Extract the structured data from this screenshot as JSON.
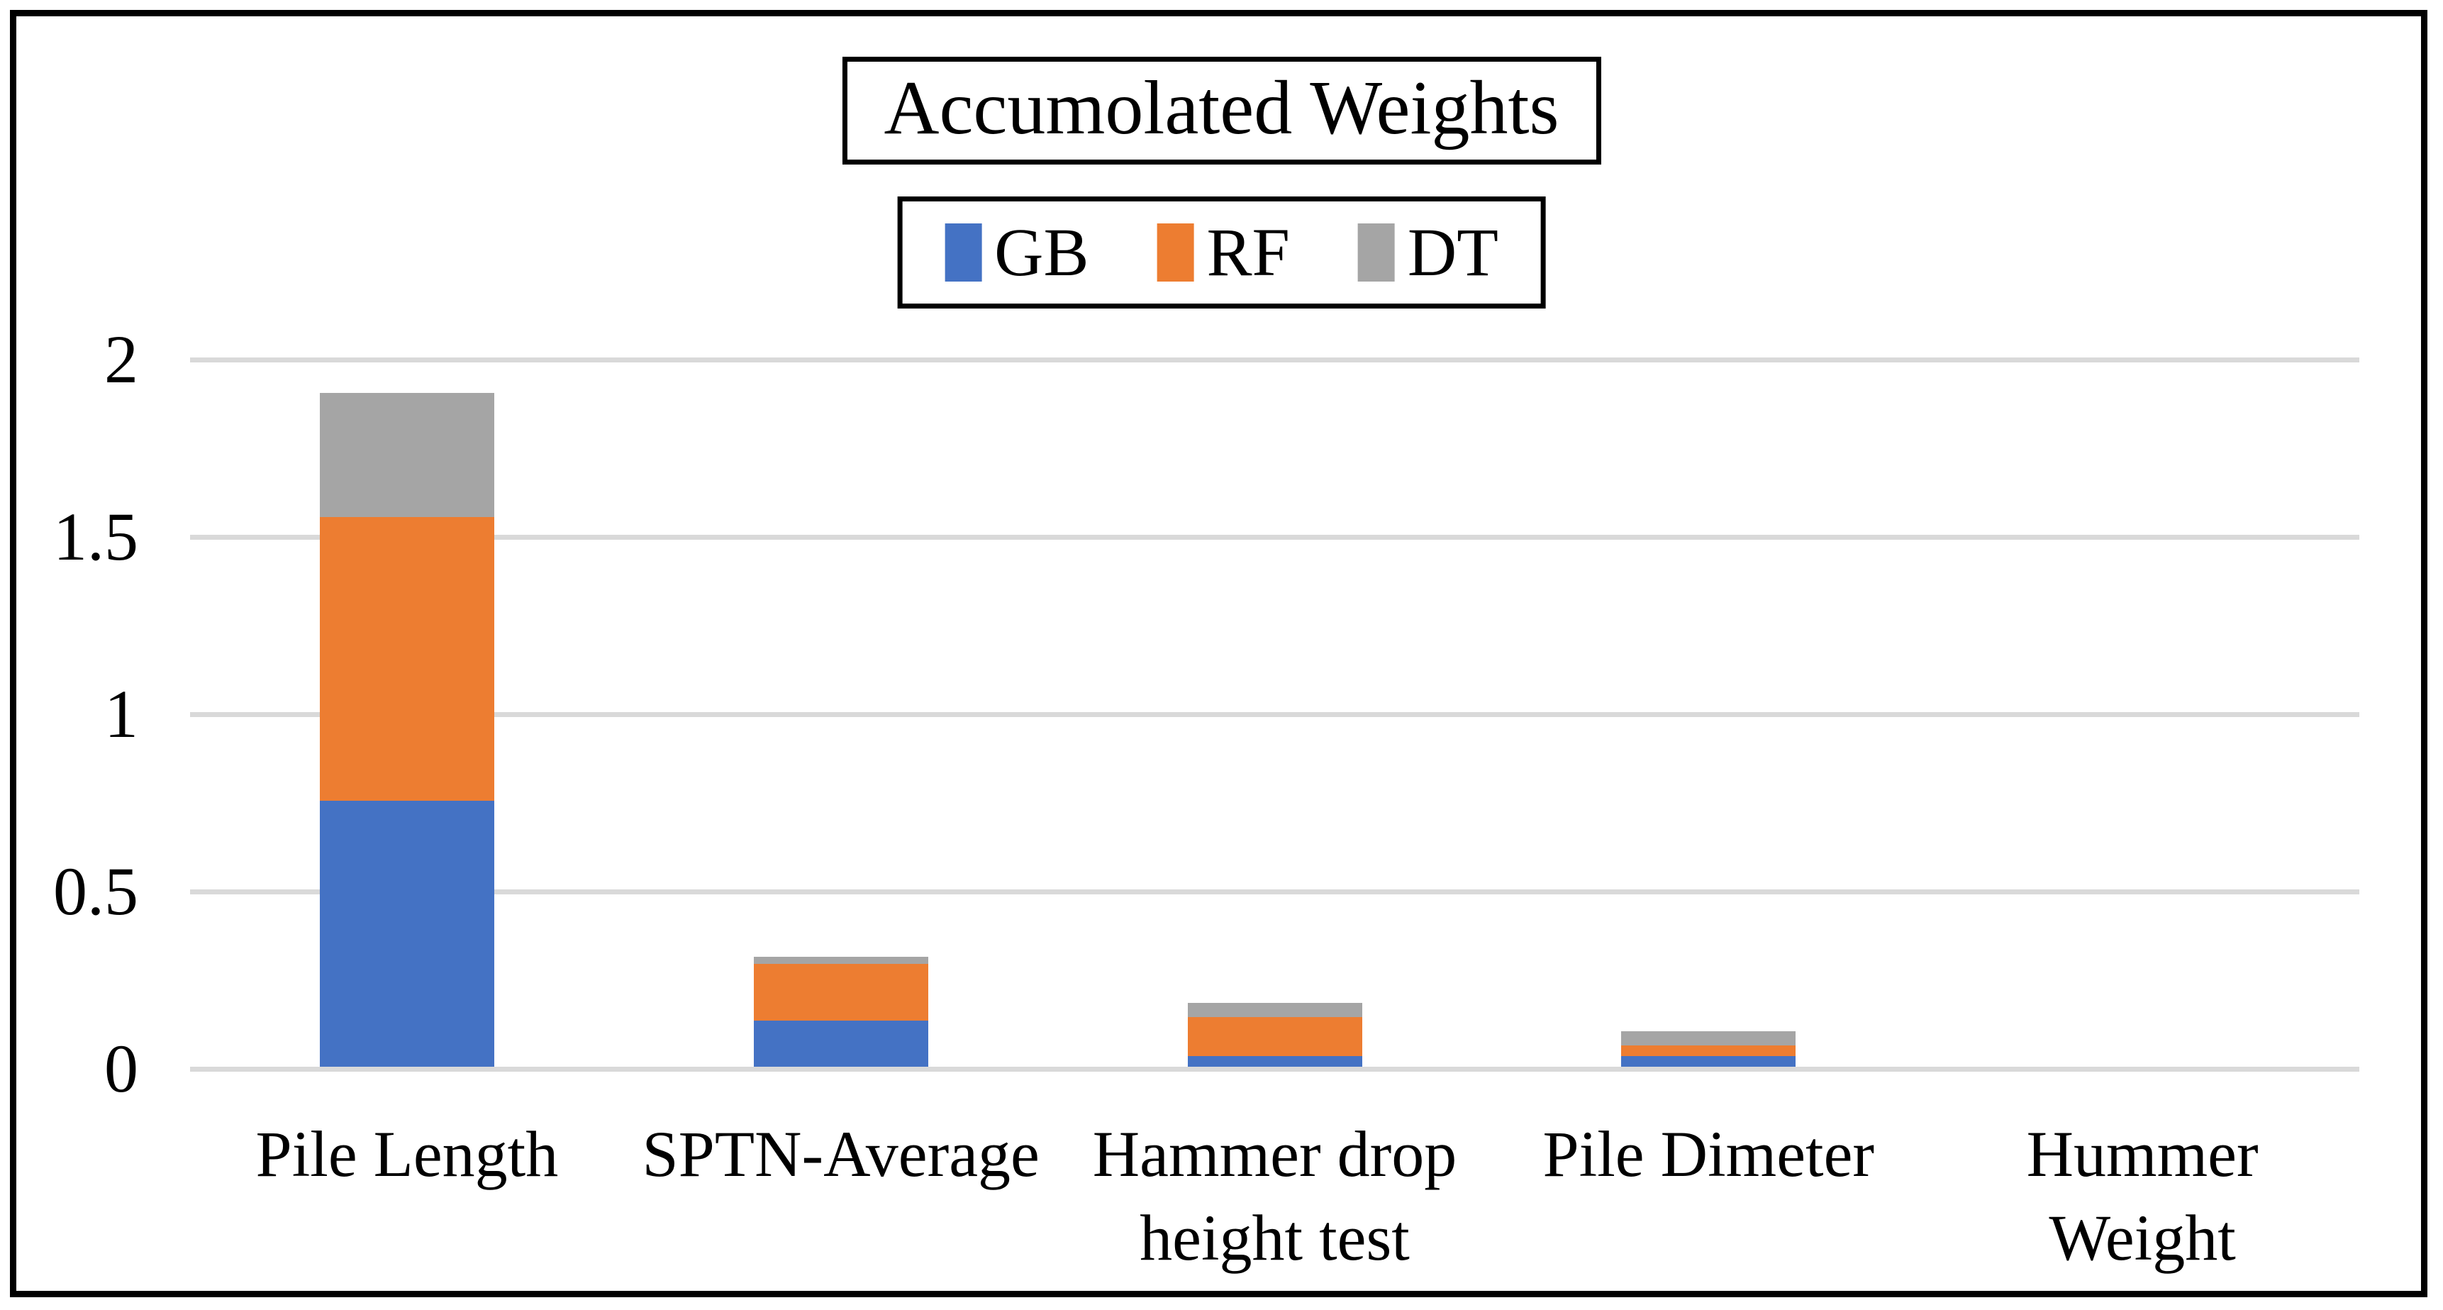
{
  "chart_data": {
    "type": "bar",
    "stacked": true,
    "title": "Accumolated Weights",
    "categories": [
      "Pile Length",
      "SPTN-Average",
      "Hammer drop\nheight test",
      "Pile Dimeter",
      "Hummer\nWeight"
    ],
    "series": [
      {
        "name": "GB",
        "color": "#4472C4",
        "values": [
          0.75,
          0.13,
          0.03,
          0.03,
          0
        ]
      },
      {
        "name": "RF",
        "color": "#ED7D31",
        "values": [
          0.8,
          0.16,
          0.11,
          0.03,
          0
        ]
      },
      {
        "name": "DT",
        "color": "#A5A5A5",
        "values": [
          0.35,
          0.02,
          0.04,
          0.04,
          0
        ]
      }
    ],
    "totals": [
      1.9,
      0.31,
      0.18,
      0.1,
      0
    ],
    "ylim": [
      0,
      2
    ],
    "yticks": [
      0,
      0.5,
      1,
      1.5,
      2
    ],
    "ytick_labels": [
      "0",
      "0.5",
      "1",
      "1.5",
      "2"
    ],
    "xlabel": "",
    "ylabel": "",
    "grid": true,
    "gridline_color": "#D9D9D9",
    "legend_position": "top-center",
    "legend_labels": [
      "GB",
      "RF",
      "DT"
    ]
  }
}
